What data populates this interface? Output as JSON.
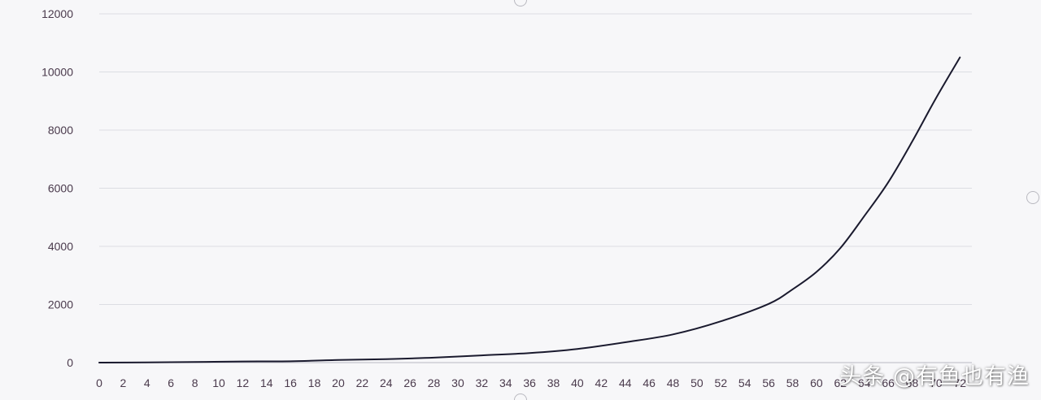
{
  "chart_data": {
    "type": "line",
    "title": "",
    "xlabel": "",
    "ylabel": "",
    "xlim": [
      0,
      73
    ],
    "ylim": [
      0,
      12000
    ],
    "y_ticks": [
      0,
      2000,
      4000,
      6000,
      8000,
      10000,
      12000
    ],
    "y_tick_labels": [
      "0",
      "2000",
      "4000",
      "6000",
      "8000",
      "10000",
      "12000"
    ],
    "x_ticks": [
      0,
      2,
      4,
      6,
      8,
      10,
      12,
      14,
      16,
      18,
      20,
      22,
      24,
      26,
      28,
      30,
      32,
      34,
      36,
      38,
      40,
      42,
      44,
      46,
      48,
      50,
      52,
      54,
      56,
      58,
      60,
      62,
      64,
      66,
      68,
      70,
      72
    ],
    "x_tick_labels": [
      "0",
      "2",
      "4",
      "6",
      "8",
      "10",
      "12",
      "14",
      "16",
      "18",
      "20",
      "22",
      "24",
      "26",
      "28",
      "30",
      "32",
      "34",
      "36",
      "38",
      "40",
      "42",
      "44",
      "46",
      "48",
      "50",
      "52",
      "54",
      "56",
      "58",
      "60",
      "62",
      "64",
      "66",
      "68",
      "70",
      "72"
    ],
    "grid": true,
    "legend": "none",
    "line_color": "#1a1a2e",
    "grid_color": "#dcdde3",
    "series": [
      {
        "x": [
          0,
          4,
          8,
          12,
          16,
          20,
          24,
          28,
          32,
          36,
          40,
          44,
          48,
          52,
          56,
          58,
          60,
          62,
          64,
          66,
          68,
          70,
          72
        ],
        "values": [
          0,
          8,
          20,
          40,
          45,
          90,
          120,
          170,
          250,
          330,
          470,
          700,
          970,
          1420,
          2020,
          2520,
          3120,
          3940,
          5040,
          6200,
          7600,
          9100,
          10500
        ]
      }
    ]
  },
  "watermark": "头条 @有鱼也有渔"
}
